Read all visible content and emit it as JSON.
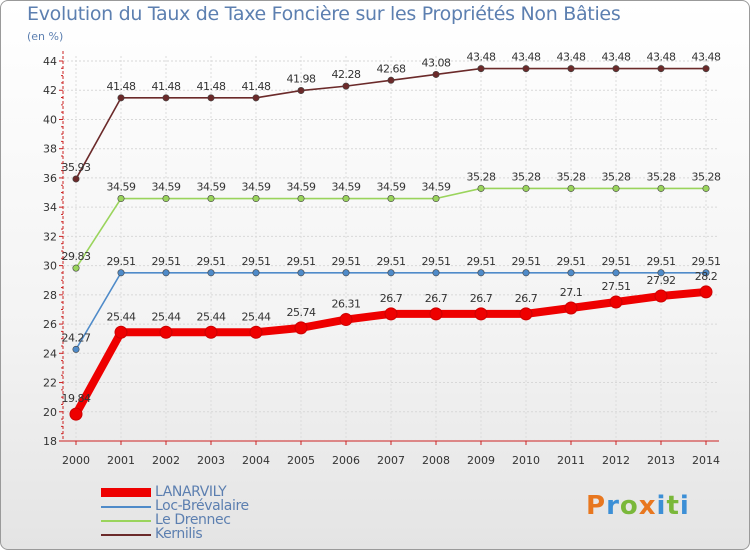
{
  "chart_data": {
    "type": "line",
    "title": "Evolution du Taux de Taxe Foncière sur les Propriétés Non Bâties",
    "subtitle": "(en %)",
    "categories": [
      "2000",
      "2001",
      "2002",
      "2003",
      "2004",
      "2005",
      "2006",
      "2007",
      "2008",
      "2009",
      "2010",
      "2011",
      "2012",
      "2013",
      "2014"
    ],
    "ylim": [
      18,
      44
    ],
    "yticks": [
      "18",
      "20",
      "22",
      "24",
      "26",
      "28",
      "30",
      "32",
      "34",
      "36",
      "38",
      "40",
      "42",
      "44"
    ],
    "series": [
      {
        "name": "Kernilis",
        "color": "#6b2a2a",
        "values": [
          35.93,
          41.48,
          41.48,
          41.48,
          41.48,
          41.98,
          42.28,
          42.68,
          43.08,
          43.48,
          43.48,
          43.48,
          43.48,
          43.48,
          43.48
        ],
        "labels": [
          "35.93",
          "41.48",
          "41.48",
          "41.48",
          "41.48",
          "41.98",
          "42.28",
          "42.68",
          "43.08",
          "43.48",
          "43.48",
          "43.48",
          "43.48",
          "43.48",
          "43.48"
        ]
      },
      {
        "name": "Le Drennec",
        "color": "#9ad45c",
        "values": [
          29.83,
          34.59,
          34.59,
          34.59,
          34.59,
          34.59,
          34.59,
          34.59,
          34.59,
          35.28,
          35.28,
          35.28,
          35.28,
          35.28,
          35.28
        ],
        "labels": [
          "29.83",
          "34.59",
          "34.59",
          "34.59",
          "34.59",
          "34.59",
          "34.59",
          "34.59",
          "34.59",
          "35.28",
          "35.28",
          "35.28",
          "35.28",
          "35.28",
          "35.28"
        ]
      },
      {
        "name": "Loc-Brévalaire",
        "color": "#4f8bc9",
        "values": [
          24.27,
          29.51,
          29.51,
          29.51,
          29.51,
          29.51,
          29.51,
          29.51,
          29.51,
          29.51,
          29.51,
          29.51,
          29.51,
          29.51,
          29.51
        ],
        "labels": [
          "24.27",
          "29.51",
          "29.51",
          "29.51",
          "29.51",
          "29.51",
          "29.51",
          "29.51",
          "29.51",
          "29.51",
          "29.51",
          "29.51",
          "29.51",
          "29.51",
          "29.51"
        ]
      },
      {
        "name": "LANARVILY",
        "color": "#ee0000",
        "values": [
          19.84,
          25.44,
          25.44,
          25.44,
          25.44,
          25.74,
          26.31,
          26.7,
          26.7,
          26.7,
          26.7,
          27.1,
          27.51,
          27.92,
          28.2
        ],
        "labels": [
          "19.84",
          "25.44",
          "25.44",
          "25.44",
          "25.44",
          "25.74",
          "26.31",
          "26.7",
          "26.7",
          "26.7",
          "26.7",
          "27.1",
          "27.51",
          "27.92",
          "28.2"
        ]
      }
    ],
    "legend": [
      "LANARVILY",
      "Loc-Brévalaire",
      "Le Drennec",
      "Kernilis"
    ],
    "legend_colors": [
      "#ee0000",
      "#4f8bc9",
      "#9ad45c",
      "#6b2a2a"
    ],
    "legend_position": "bottom-left"
  },
  "branding": {
    "logo_text": "Proxiti"
  }
}
